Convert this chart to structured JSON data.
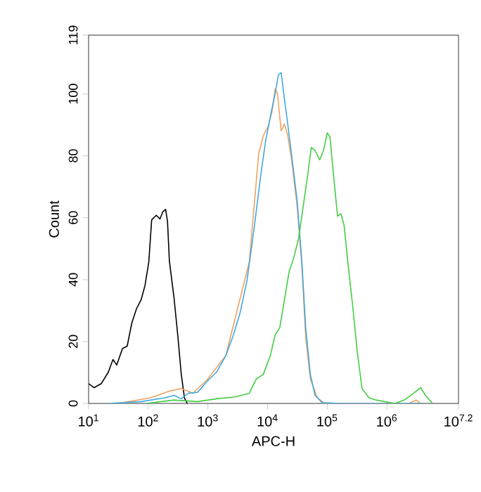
{
  "chart_data": {
    "type": "line",
    "xlabel": "APC-H",
    "ylabel": "Count",
    "log": "x",
    "marker": "none",
    "line_style": "solid",
    "xlim": [
      10,
      15848932
    ],
    "ylim": [
      0,
      119
    ],
    "xticks": [
      {
        "value": 10,
        "label": "10$^{1}$"
      },
      {
        "value": 100,
        "label": "10$^{2}$"
      },
      {
        "value": 1000,
        "label": "10$^{3}$"
      },
      {
        "value": 10000,
        "label": "10$^{4}$"
      },
      {
        "value": 100000,
        "label": "10$^{5}$"
      },
      {
        "value": 1000000,
        "label": "10$^{6}$"
      },
      {
        "value": 15848932,
        "label": "10$^{7.2}$"
      }
    ],
    "yticks": [
      0,
      20,
      40,
      60,
      80,
      100,
      119
    ],
    "series": [
      {
        "color": "#000000",
        "x": [
          10,
          12.4,
          16.3,
          21.4,
          25.6,
          29.6,
          36.9,
          44.3,
          53.0,
          63.5,
          76.2,
          88.1,
          102,
          114,
          136,
          157,
          175,
          195,
          210,
          226,
          271,
          313,
          356,
          404,
          451
        ],
        "values": [
          6.4,
          5.1,
          6.4,
          10.1,
          14.2,
          12.4,
          17.7,
          18.5,
          26.0,
          30.6,
          33.6,
          38.1,
          45.7,
          59.3,
          60.8,
          59.6,
          61.9,
          62.7,
          58.9,
          46.0,
          33.9,
          21.8,
          9.7,
          1.8,
          0
        ]
      },
      {
        "color": "#f0a060",
        "x": [
          30.8,
          109,
          226,
          356,
          560,
          964,
          1990,
          3430,
          4930,
          7080,
          8490,
          10200,
          11800,
          13400,
          14600,
          16900,
          19200,
          21800,
          25200,
          31300,
          37600,
          43500,
          52100,
          68400,
          89700,
          2340000,
          3080000,
          3690000
        ],
        "values": [
          0,
          1.8,
          4.0,
          4.8,
          3.3,
          7.6,
          15.4,
          null,
          45.7,
          80.5,
          86.5,
          89.5,
          94.1,
          101.7,
          100.2,
          88.1,
          90.3,
          86.5,
          78.9,
          63.7,
          44.1,
          21.5,
          7.9,
          1.8,
          0,
          0,
          1.1,
          0
        ]
      },
      {
        "color": "#3fa9e0",
        "x": [
          21.4,
          76.2,
          189,
          271,
          356,
          467,
          671,
          964,
          1390,
          1990,
          2610,
          3430,
          4510,
          5920,
          7760,
          9310,
          11100,
          13400,
          15200,
          16900,
          18200,
          21000,
          25200,
          31300,
          37600,
          43500,
          52100,
          62400,
          81800,
          155000,
          4040000
        ],
        "values": [
          0,
          0.6,
          1.8,
          2.6,
          1.5,
          3.3,
          3.6,
          7.1,
          10.1,
          15.4,
          21.5,
          29.0,
          39.6,
          56.3,
          74.4,
          85.0,
          92.6,
          100.2,
          106.2,
          106.9,
          101.7,
          92.6,
          80.5,
          65.4,
          45.7,
          24.5,
          9.4,
          2.6,
          0.3,
          0,
          0
        ]
      },
      {
        "color": "#44cc44",
        "x": [
          91.4,
          271,
          671,
          1390,
          2860,
          4930,
          6470,
          8490,
          11100,
          13400,
          16000,
          19200,
          23000,
          27600,
          33100,
          39600,
          47500,
          54000,
          62400,
          74800,
          86500,
          100000,
          111000,
          129000,
          149000,
          169000,
          192000,
          222000,
          266000,
          319000,
          383000,
          502000,
          659000,
          1360000,
          1950000,
          2810000,
          3690000,
          4430000,
          5810000
        ],
        "values": [
          0,
          1.1,
          0.6,
          1.5,
          2.1,
          3.3,
          7.9,
          9.4,
          15.4,
          22.2,
          24.5,
          33.6,
          42.7,
          47.2,
          53.3,
          63.8,
          74.4,
          82.7,
          81.7,
          78.7,
          81.7,
          87.4,
          86.2,
          72.6,
          60.5,
          61.3,
          57.5,
          45.4,
          31.8,
          16.6,
          4.8,
          1.8,
          1.1,
          0,
          1.1,
          3.3,
          5.1,
          2.6,
          0
        ]
      }
    ]
  }
}
